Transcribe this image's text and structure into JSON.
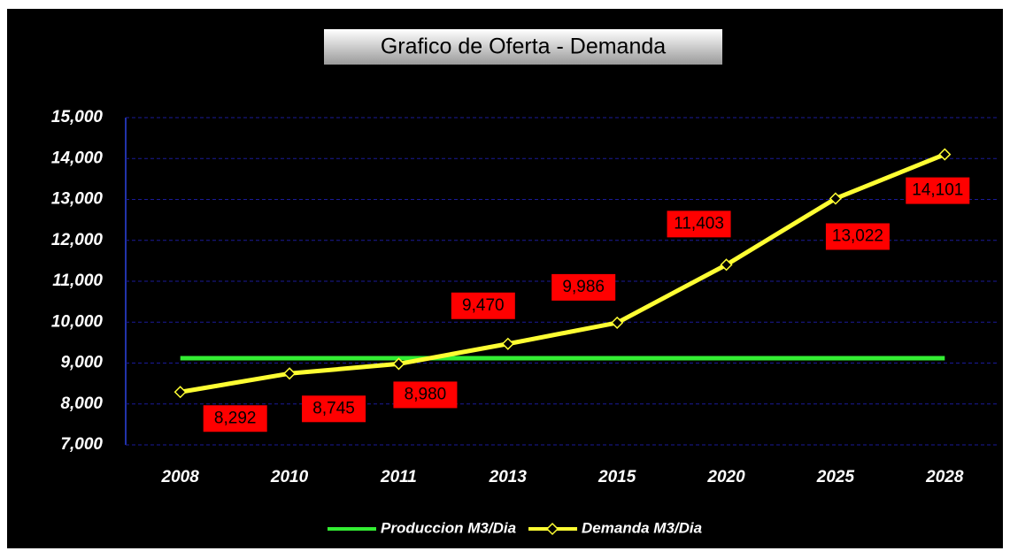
{
  "chart_data": {
    "type": "line",
    "title": "Grafico de Oferta -  Demanda",
    "categories": [
      "2008",
      "2010",
      "2011",
      "2013",
      "2015",
      "2020",
      "2025",
      "2028"
    ],
    "series": [
      {
        "name": "Produccion M3/Dia",
        "color": "#33ee33",
        "values": [
          9120,
          9120,
          9120,
          9120,
          9120,
          9120,
          9120,
          9120
        ]
      },
      {
        "name": "Demanda M3/Dia",
        "color": "#ffff33",
        "values": [
          8292,
          8745,
          8980,
          9470,
          9986,
          11403,
          13022,
          14101
        ],
        "value_labels": [
          "8,292",
          "8,745",
          "8,980",
          "9,470",
          "9,986",
          "11,403",
          "13,022",
          "14,101"
        ]
      }
    ],
    "ylim": [
      7000,
      15000
    ],
    "yticks": [
      {
        "value": 7000,
        "label": "7,000"
      },
      {
        "value": 8000,
        "label": "8,000"
      },
      {
        "value": 9000,
        "label": "9,000"
      },
      {
        "value": 10000,
        "label": "10,000"
      },
      {
        "value": 11000,
        "label": "11,000"
      },
      {
        "value": 12000,
        "label": "12,000"
      },
      {
        "value": 13000,
        "label": "13,000"
      },
      {
        "value": 14000,
        "label": "14,000"
      },
      {
        "value": 15000,
        "label": "15,000"
      }
    ],
    "grid": true
  }
}
